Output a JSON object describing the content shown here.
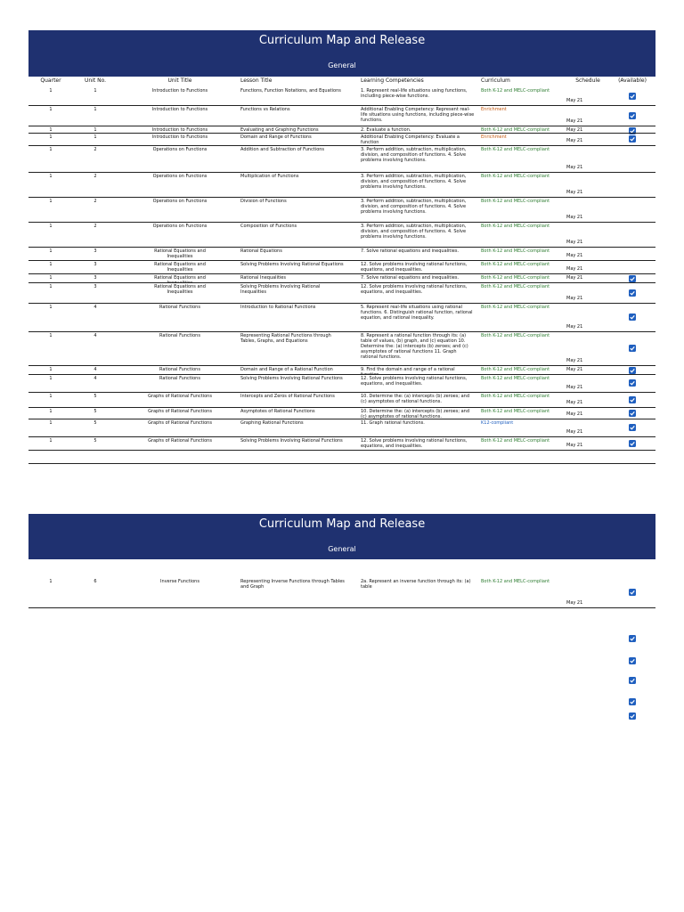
{
  "columns": [
    "Quarter",
    "Unit No.",
    "Unit Title",
    "Lesson Title",
    "Learning Competencies",
    "Curriculum",
    "Schedule",
    "(Available)"
  ],
  "pages": [
    {
      "title": "Curriculum Map and Release",
      "subtitle": "General",
      "rows": [
        {
          "quarter": "1",
          "unit_no": "1",
          "unit_title": "Introduction to Functions",
          "lesson_title": "Functions, Function Notations, and Equations",
          "competencies": "1. Represent real-life situations using functions, including piece-wise functions.",
          "curriculum": "Both K-12 and MELC-compliant",
          "curriculum_color": "#2e7d32",
          "schedule": "May 21",
          "available": true
        },
        {
          "quarter": "1",
          "unit_no": "1",
          "unit_title": "Introduction to Functions",
          "lesson_title": "Functions vs Relations",
          "competencies": "Additional Enabling Competency: Represent real-life situations using functions, including piece-wise functions.",
          "curriculum": "Enrichment",
          "curriculum_color": "#c55a11",
          "schedule": "May 21",
          "available": true
        },
        {
          "quarter": "1",
          "unit_no": "1",
          "unit_title": "Introduction to Functions",
          "lesson_title": "Evaluating and Graphing Functions",
          "competencies": "2. Evaluate a function.",
          "curriculum": "Both K-12 and MELC-compliant",
          "curriculum_color": "#2e7d32",
          "schedule": "May 21",
          "available": true
        },
        {
          "quarter": "1",
          "unit_no": "1",
          "unit_title": "Introduction to Functions",
          "lesson_title": "Domain and Range of Functions",
          "competencies": "Additional Enabling Competency: Evaluate a function",
          "curriculum": "Enrichment",
          "curriculum_color": "#c55a11",
          "schedule": "May 21",
          "available": true
        },
        {
          "quarter": "1",
          "unit_no": "2",
          "unit_title": "Operations on Functions",
          "lesson_title": "Addition and Subtraction of Functions",
          "competencies": "3. Perform addition, subtraction, multiplication, division, and composition of functions. 4. Solve problems involving functions.",
          "curriculum": "Both K-12 and MELC-compliant",
          "curriculum_color": "#2e7d32",
          "schedule": "May 21",
          "available": false
        },
        {
          "quarter": "1",
          "unit_no": "2",
          "unit_title": "Operations on Functions",
          "lesson_title": "Multiplication of Functions",
          "competencies": "3. Perform addition, subtraction, multiplication, division, and composition of functions. 4. Solve problems involving functions.",
          "curriculum": "Both K-12 and MELC-compliant",
          "curriculum_color": "#2e7d32",
          "schedule": "May 21",
          "available": false
        },
        {
          "quarter": "1",
          "unit_no": "2",
          "unit_title": "Operations on Functions",
          "lesson_title": "Division of Functions",
          "competencies": "3. Perform addition, subtraction, multiplication, division, and composition of functions. 4. Solve problems involving functions.",
          "curriculum": "Both K-12 and MELC-compliant",
          "curriculum_color": "#2e7d32",
          "schedule": "May 21",
          "available": false
        },
        {
          "quarter": "1",
          "unit_no": "2",
          "unit_title": "Operations on Functions",
          "lesson_title": "Composition of Functions",
          "competencies": "3. Perform addition, subtraction, multiplication, division, and composition of functions. 4. Solve problems involving functions.",
          "curriculum": "Both K-12 and MELC-compliant",
          "curriculum_color": "#2e7d32",
          "schedule": "May 21",
          "available": false
        },
        {
          "quarter": "1",
          "unit_no": "3",
          "unit_title": "Rational Equations and Inequalities",
          "lesson_title": "Rational Equations",
          "competencies": "7. Solve rational equations and inequalities.",
          "curriculum": "Both K-12 and MELC-compliant",
          "curriculum_color": "#2e7d32",
          "schedule": "May 21",
          "available": false
        },
        {
          "quarter": "1",
          "unit_no": "3",
          "unit_title": "Rational Equations and Inequalities",
          "lesson_title": "Solving Problems Involving Rational Equations",
          "competencies": "12. Solve problems involving rational functions, equations, and inequalities.",
          "curriculum": "Both K-12 and MELC-compliant",
          "curriculum_color": "#2e7d32",
          "schedule": "May 21",
          "available": false
        },
        {
          "quarter": "1",
          "unit_no": "3",
          "unit_title": "Rational Equations and Inequalities",
          "lesson_title": "Rational Inequalities",
          "competencies": "7. Solve rational equations and inequalities.",
          "curriculum": "Both K-12 and MELC-compliant",
          "curriculum_color": "#2e7d32",
          "schedule": "May 21",
          "available": true
        },
        {
          "quarter": "1",
          "unit_no": "3",
          "unit_title": "Rational Equations and Inequalities",
          "lesson_title": "Solving Problems Involving Rational Inequalities",
          "competencies": "12. Solve problems involving rational functions, equations, and inequalities.",
          "curriculum": "Both K-12 and MELC-compliant",
          "curriculum_color": "#2e7d32",
          "schedule": "May 21",
          "available": true
        },
        {
          "quarter": "1",
          "unit_no": "4",
          "unit_title": "Rational Functions",
          "lesson_title": "Introduction to Rational Functions",
          "competencies": "5. Represent real-life situations using rational functions. 6. Distinguish rational function, rational equation, and rational inequality.",
          "curriculum": "Both K-12 and MELC-compliant",
          "curriculum_color": "#2e7d32",
          "schedule": "May 21",
          "available": true
        },
        {
          "quarter": "1",
          "unit_no": "4",
          "unit_title": "Rational Functions",
          "lesson_title": "Representing Rational Functions through Tables, Graphs, and Equations",
          "competencies": "8. Represent a rational function through its: (a) table of values, (b) graph, and (c) equation 10. Determine the: (a) intercepts (b) zeroes; and (c) asymptotes of rational functions 11. Graph rational functions.",
          "curriculum": "Both K-12 and MELC-compliant",
          "curriculum_color": "#2e7d32",
          "schedule": "May 21",
          "available": true
        },
        {
          "quarter": "1",
          "unit_no": "4",
          "unit_title": "Rational Functions",
          "lesson_title": "Domain and Range of a Rational Function",
          "competencies": "9. Find the domain and range of a rational function.",
          "curriculum": "Both K-12 and MELC-compliant",
          "curriculum_color": "#2e7d32",
          "schedule": "May 21",
          "available": true
        },
        {
          "quarter": "1",
          "unit_no": "4",
          "unit_title": "Rational Functions",
          "lesson_title": "Solving Problems Involving Rational Functions",
          "competencies": "12. Solve problems involving rational functions, equations, and inequalities.",
          "curriculum": "Both K-12 and MELC-compliant",
          "curriculum_color": "#2e7d32",
          "schedule": "May 21",
          "available": true
        },
        {
          "quarter": "1",
          "unit_no": "5",
          "unit_title": "Graphs of Rational Functions",
          "lesson_title": "Intercepts and Zeros of Rational Functions",
          "competencies": "10. Determine the: (a) intercepts (b) zeroes; and (c) asymptotes of rational functions.",
          "curriculum": "Both K-12 and MELC-compliant",
          "curriculum_color": "#2e7d32",
          "schedule": "May 21",
          "available": true
        },
        {
          "quarter": "1",
          "unit_no": "5",
          "unit_title": "Graphs of Rational Functions",
          "lesson_title": "Asymptotes of Rational Functions",
          "competencies": "10. Determine the: (a) intercepts (b) zeroes; and (c) asymptotes of rational functions.",
          "curriculum": "Both K-12 and MELC-compliant",
          "curriculum_color": "#2e7d32",
          "schedule": "May 21",
          "available": true
        },
        {
          "quarter": "1",
          "unit_no": "5",
          "unit_title": "Graphs of Rational Functions",
          "lesson_title": "Graphing Rational Functions",
          "competencies": "11. Graph rational functions.",
          "curriculum": "K12-compliant",
          "curriculum_color": "#1f5fbf",
          "schedule": "May 21",
          "available": true
        },
        {
          "quarter": "1",
          "unit_no": "5",
          "unit_title": "Graphs of Rational Functions",
          "lesson_title": "Solving Problems Involving Rational Functions",
          "competencies": "12. Solve problems involving rational functions, equations, and inequalities.",
          "curriculum": "Both K-12 and MELC-compliant",
          "curriculum_color": "#2e7d32",
          "schedule": "May 21",
          "available": true
        }
      ]
    },
    {
      "title": "Curriculum Map and Release",
      "subtitle": "General",
      "rows": [
        {
          "quarter": "1",
          "unit_no": "6",
          "unit_title": "Inverse Functions",
          "lesson_title": "Representing Inverse Functions through Tables and Graph",
          "competencies": "2a. Represent an inverse function through its: (a) table",
          "curriculum": "Both K-12 and MELC-compliant",
          "curriculum_color": "#2e7d32",
          "schedule": "May 21",
          "available": true
        }
      ]
    }
  ]
}
